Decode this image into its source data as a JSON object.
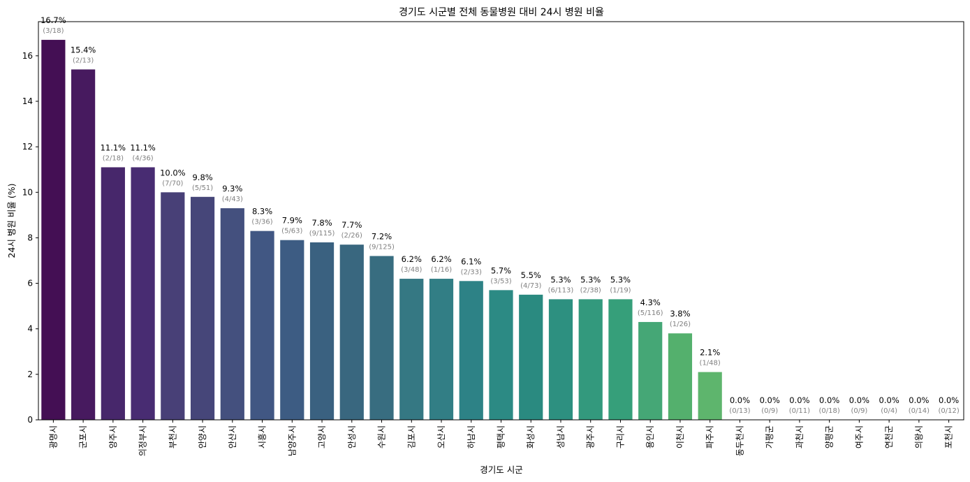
{
  "chart_data": {
    "type": "bar",
    "title": "경기도 시군별 전체 동물병원 대비 24시 병원 비율",
    "xlabel": "경기도 시군",
    "ylabel": "24시 병원 비율 (%)",
    "ylim": [
      0,
      17.5
    ],
    "yticks": [
      0,
      2,
      4,
      6,
      8,
      10,
      12,
      14,
      16
    ],
    "grid": false,
    "categories": [
      "광명시",
      "군포시",
      "양주시",
      "의정부시",
      "부천시",
      "안양시",
      "안산시",
      "시흥시",
      "남양주시",
      "고양시",
      "안성시",
      "수원시",
      "김포시",
      "오산시",
      "하남시",
      "평택시",
      "화성시",
      "성남시",
      "광주시",
      "구리시",
      "용인시",
      "이천시",
      "파주시",
      "동두천시",
      "가평군",
      "과천시",
      "양평군",
      "여주시",
      "연천군",
      "의왕시",
      "포천시"
    ],
    "values": [
      16.7,
      15.4,
      11.1,
      11.1,
      10.0,
      9.8,
      9.3,
      8.3,
      7.9,
      7.8,
      7.7,
      7.2,
      6.2,
      6.2,
      6.1,
      5.7,
      5.5,
      5.3,
      5.3,
      5.3,
      4.3,
      3.8,
      2.1,
      0.0,
      0.0,
      0.0,
      0.0,
      0.0,
      0.0,
      0.0,
      0.0
    ],
    "value_labels": [
      "16.7%",
      "15.4%",
      "11.1%",
      "11.1%",
      "10.0%",
      "9.8%",
      "9.3%",
      "8.3%",
      "7.9%",
      "7.8%",
      "7.7%",
      "7.2%",
      "6.2%",
      "6.2%",
      "6.1%",
      "5.7%",
      "5.5%",
      "5.3%",
      "5.3%",
      "5.3%",
      "4.3%",
      "3.8%",
      "2.1%",
      "0.0%",
      "0.0%",
      "0.0%",
      "0.0%",
      "0.0%",
      "0.0%",
      "0.0%",
      "0.0%"
    ],
    "count_labels": [
      "(3/18)",
      "(2/13)",
      "(2/18)",
      "(4/36)",
      "(7/70)",
      "(5/51)",
      "(4/43)",
      "(3/36)",
      "(5/63)",
      "(9/115)",
      "(2/26)",
      "(9/125)",
      "(3/48)",
      "(1/16)",
      "(2/33)",
      "(3/53)",
      "(4/73)",
      "(6/113)",
      "(2/38)",
      "(1/19)",
      "(5/116)",
      "(1/26)",
      "(1/48)",
      "(0/13)",
      "(0/9)",
      "(0/11)",
      "(0/18)",
      "(0/9)",
      "(0/4)",
      "(0/14)",
      "(0/12)"
    ],
    "colors": [
      "#440f54",
      "#471a5f",
      "#47276b",
      "#482c72",
      "#484077",
      "#464679",
      "#44507e",
      "#415783",
      "#3d5c83",
      "#3a6180",
      "#39677f",
      "#386d80",
      "#357883",
      "#327e85",
      "#2d8286",
      "#2c8a84",
      "#2a8a80",
      "#2d9080",
      "#33997d",
      "#369f7a",
      "#45a776",
      "#54b06d",
      "#5eb56d",
      "#63b96a",
      "#63b96a",
      "#63b96a",
      "#63b96a",
      "#63b96a",
      "#63b96a",
      "#63b96a",
      "#63b96a"
    ]
  }
}
